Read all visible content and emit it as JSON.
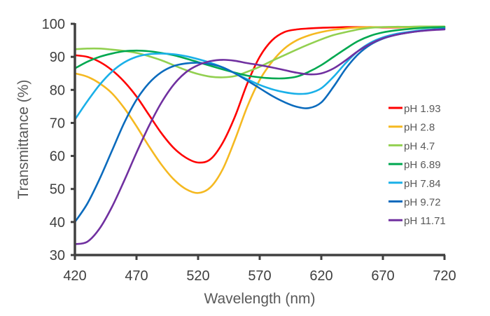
{
  "chart_data": {
    "type": "line",
    "title": "",
    "xlabel": "Wavelength (nm)",
    "ylabel": "Transmittance (%)",
    "xlim": [
      420,
      720
    ],
    "ylim": [
      30,
      100
    ],
    "xticks": [
      420,
      470,
      520,
      570,
      620,
      670,
      720
    ],
    "yticks": [
      30,
      40,
      50,
      60,
      70,
      80,
      90,
      100
    ],
    "grid": false,
    "legend_position": "right",
    "x": [
      420,
      430,
      440,
      450,
      460,
      470,
      480,
      490,
      500,
      510,
      520,
      530,
      540,
      550,
      560,
      570,
      580,
      590,
      600,
      610,
      620,
      630,
      640,
      650,
      660,
      670,
      680,
      690,
      700,
      710,
      720
    ],
    "series": [
      {
        "name": "pH 1.93",
        "color": "#ff0000",
        "values": [
          90.5,
          90,
          88.5,
          86,
          82.5,
          78,
          72.5,
          67,
          62.5,
          59.5,
          58,
          59,
          64,
          72,
          82,
          90,
          95,
          97.5,
          98.3,
          98.6,
          98.8,
          98.9,
          99,
          99,
          99,
          98.9,
          98.9,
          99,
          99,
          99,
          99
        ]
      },
      {
        "name": "pH 2.8",
        "color": "#f5b921",
        "values": [
          85,
          84,
          82,
          79,
          74.5,
          69,
          63,
          57.5,
          53,
          50,
          48.8,
          50.5,
          56,
          65,
          75,
          83,
          88.5,
          92.5,
          95,
          96.5,
          97.5,
          98.2,
          98.6,
          98.9,
          99,
          99,
          99,
          99,
          99,
          99,
          99
        ]
      },
      {
        "name": "pH 4.7",
        "color": "#92d050",
        "values": [
          92.3,
          92.5,
          92.5,
          92.2,
          91.8,
          91.2,
          90.2,
          89,
          87.5,
          86,
          84.8,
          84,
          83.8,
          84.2,
          85.5,
          87,
          88.8,
          90.5,
          92.2,
          93.8,
          95.3,
          96.6,
          97.5,
          98.3,
          98.8,
          99,
          99.1,
          99.1,
          99.2,
          99.2,
          99.2
        ]
      },
      {
        "name": "pH 6.89",
        "color": "#00a850",
        "values": [
          86.5,
          88.5,
          90,
          91,
          91.7,
          91.9,
          91.7,
          91.2,
          90.5,
          89.5,
          88.4,
          87.3,
          86.2,
          85.2,
          84.3,
          83.8,
          83.5,
          83.5,
          84,
          85.5,
          87.5,
          90,
          92.5,
          94.8,
          96.4,
          97.4,
          98,
          98.4,
          98.7,
          98.9,
          99
        ]
      },
      {
        "name": "pH 7.84",
        "color": "#1ab0e8",
        "values": [
          71,
          76.5,
          81.5,
          85.5,
          88.3,
          90,
          90.8,
          91,
          90.8,
          90.2,
          89.3,
          88.2,
          86.8,
          85,
          83.2,
          81.5,
          80.2,
          79.3,
          78.8,
          79,
          80.5,
          84,
          88.2,
          91.8,
          94.3,
          95.9,
          96.9,
          97.5,
          98,
          98.3,
          98.6
        ]
      },
      {
        "name": "pH 9.72",
        "color": "#0b6bbd",
        "values": [
          40,
          45.5,
          53,
          61.5,
          70,
          77,
          82,
          85.3,
          87.2,
          88,
          88.2,
          87.8,
          86.8,
          85,
          82.8,
          80.5,
          78.2,
          76.3,
          74.9,
          74.5,
          76.2,
          81,
          86.5,
          90.8,
          93.7,
          95.5,
          96.6,
          97.3,
          97.8,
          98.2,
          98.5
        ]
      },
      {
        "name": "pH 11.71",
        "color": "#7030a0",
        "values": [
          33.3,
          34,
          38,
          44.5,
          52.5,
          61,
          69,
          76,
          81.5,
          85.3,
          87.5,
          88.7,
          89.1,
          88.8,
          88.1,
          87.5,
          86.8,
          86,
          85.2,
          84.7,
          85,
          86.5,
          89,
          91.8,
          94,
          95.6,
          96.6,
          97.3,
          97.8,
          98.1,
          98.3
        ]
      }
    ]
  }
}
